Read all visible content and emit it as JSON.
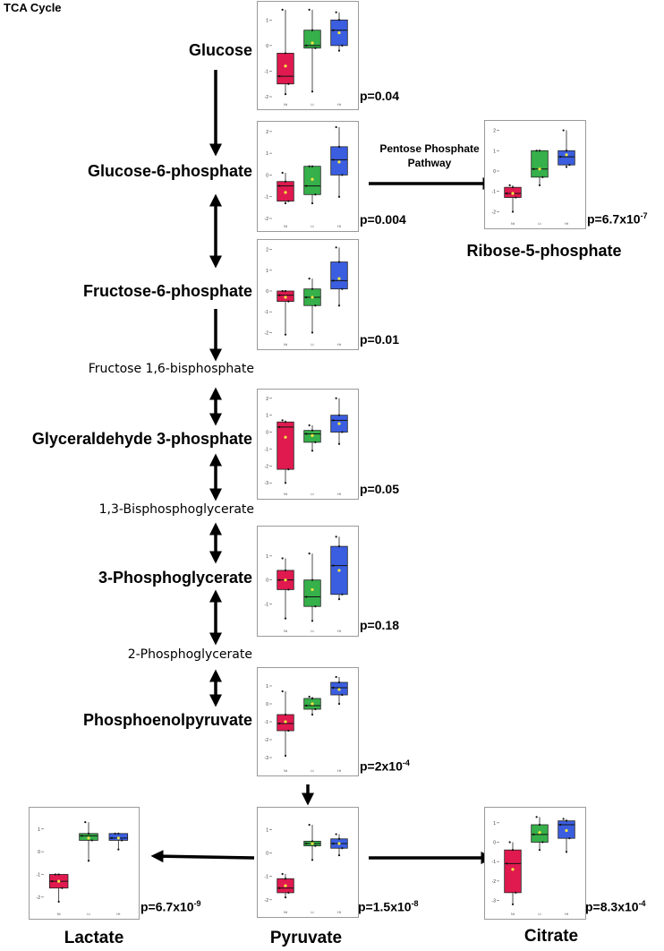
{
  "title": "TCA Cycle",
  "colors": {
    "group1": "#e0194f",
    "group2": "#36b04a",
    "group3": "#3b5ee0",
    "mean": "#f2e640"
  },
  "pathway_label_line1": "Pentose Phosphate",
  "pathway_label_line2": "Pathway",
  "metabolites": {
    "glucose": "Glucose",
    "g6p": "Glucose-6-phosphate",
    "f6p": "Fructose-6-phosphate",
    "f16bp": "Fructose 1,6-bisphosphate",
    "g3p": "Glyceraldehyde 3-phosphate",
    "bpg13": "1,3-Bisphosphoglycerate",
    "pg3": "3-Phosphoglycerate",
    "pg2": "2-Phosphoglycerate",
    "pep": "Phosphoenolpyruvate",
    "r5p": "Ribose-5-phosphate",
    "lactate": "Lactate",
    "pyruvate": "Pyruvate",
    "citrate": "Citrate"
  },
  "pvalues": {
    "glucose": "p=0.04",
    "g6p": "p=0.004",
    "f6p": "p=0.01",
    "g3p": "p=0.05",
    "pg3": "p=0.18",
    "pep": {
      "base": "p=2x10",
      "exp": "-4"
    },
    "r5p": {
      "base": "p=6.7x10",
      "exp": "-7"
    },
    "lactate": {
      "base": "p=6.7x10",
      "exp": "-9"
    },
    "pyruvate": {
      "base": "p=1.5x10",
      "exp": "-8"
    },
    "citrate": {
      "base": "p=8.3x10",
      "exp": "-4"
    }
  },
  "chart_data": [
    {
      "id": "glucose",
      "type": "box",
      "ylim": [
        -2,
        1.5
      ],
      "yticks": [
        -2,
        -1,
        0,
        1
      ],
      "xticks": [
        "Nt",
        "Lt",
        "Ht"
      ],
      "boxes": [
        {
          "q1": -1.5,
          "median": -1.2,
          "q3": -0.3,
          "lo": -1.9,
          "hi": 1.4,
          "mean": -0.8
        },
        {
          "q1": -0.1,
          "median": 0.0,
          "q3": 0.6,
          "lo": -1.8,
          "hi": 1.4,
          "mean": 0.1
        },
        {
          "q1": 0.0,
          "median": 0.6,
          "q3": 1.0,
          "lo": -0.2,
          "hi": 1.3,
          "mean": 0.5
        }
      ]
    },
    {
      "id": "g6p",
      "type": "box",
      "ylim": [
        -2,
        2.2
      ],
      "yticks": [
        -2,
        -1,
        0,
        1,
        2
      ],
      "xticks": [
        "Nt",
        "Lt",
        "Ht"
      ],
      "boxes": [
        {
          "q1": -1.2,
          "median": -0.5,
          "q3": -0.3,
          "lo": -1.3,
          "hi": 0.1,
          "mean": -0.8
        },
        {
          "q1": -0.9,
          "median": -0.5,
          "q3": 0.4,
          "lo": -1.3,
          "hi": 0.4,
          "mean": -0.2
        },
        {
          "q1": 0.0,
          "median": 0.7,
          "q3": 1.3,
          "lo": -1.0,
          "hi": 2.2,
          "mean": 0.6
        }
      ]
    },
    {
      "id": "f6p",
      "type": "box",
      "ylim": [
        -2.2,
        2.2
      ],
      "yticks": [
        -2,
        -1,
        0,
        1,
        2
      ],
      "xticks": [
        "Nt",
        "Lt",
        "Ht"
      ],
      "boxes": [
        {
          "q1": -0.5,
          "median": -0.2,
          "q3": 0.0,
          "lo": -2.1,
          "hi": 0.0,
          "mean": -0.3
        },
        {
          "q1": -0.7,
          "median": -0.3,
          "q3": 0.1,
          "lo": -2.0,
          "hi": 0.6,
          "mean": -0.3
        },
        {
          "q1": 0.1,
          "median": 0.5,
          "q3": 1.4,
          "lo": -0.7,
          "hi": 2.1,
          "mean": 0.6
        }
      ]
    },
    {
      "id": "g3p",
      "type": "box",
      "ylim": [
        -3.2,
        2.2
      ],
      "yticks": [
        -3,
        -2,
        -1,
        0,
        1,
        2
      ],
      "xticks": [
        "Nt",
        "Lt",
        "Ht"
      ],
      "boxes": [
        {
          "q1": -2.2,
          "median": 0.3,
          "q3": 0.6,
          "lo": -3.0,
          "hi": 0.7,
          "mean": -0.3
        },
        {
          "q1": -0.6,
          "median": -0.1,
          "q3": 0.1,
          "lo": -1.1,
          "hi": 0.4,
          "mean": -0.2
        },
        {
          "q1": 0.0,
          "median": 0.7,
          "q3": 1.0,
          "lo": -0.7,
          "hi": 2.0,
          "mean": 0.5
        }
      ]
    },
    {
      "id": "pg3",
      "type": "box",
      "ylim": [
        -1.8,
        2.0
      ],
      "yticks": [
        -1,
        0,
        1
      ],
      "xticks": [
        "Nt",
        "Lt",
        "Ht"
      ],
      "boxes": [
        {
          "q1": -0.4,
          "median": 0.0,
          "q3": 0.4,
          "lo": -1.6,
          "hi": 0.9,
          "mean": 0.0
        },
        {
          "q1": -1.1,
          "median": -0.7,
          "q3": 0.0,
          "lo": -1.7,
          "hi": 1.1,
          "mean": -0.4
        },
        {
          "q1": -0.6,
          "median": 0.6,
          "q3": 1.4,
          "lo": -0.8,
          "hi": 1.8,
          "mean": 0.4
        }
      ]
    },
    {
      "id": "pep",
      "type": "box",
      "ylim": [
        -3.3,
        1.7
      ],
      "yticks": [
        -3,
        -2,
        -1,
        0,
        1
      ],
      "xticks": [
        "Nt",
        "Lt",
        "Ht"
      ],
      "boxes": [
        {
          "q1": -1.5,
          "median": -1.1,
          "q3": -0.6,
          "lo": -2.9,
          "hi": 0.7,
          "mean": -1.0
        },
        {
          "q1": -0.3,
          "median": -0.1,
          "q3": 0.3,
          "lo": -0.6,
          "hi": 0.4,
          "mean": 0.0
        },
        {
          "q1": 0.5,
          "median": 0.9,
          "q3": 1.2,
          "lo": 0.0,
          "hi": 1.5,
          "mean": 0.8
        }
      ]
    },
    {
      "id": "r5p",
      "type": "box",
      "ylim": [
        -2.2,
        2.2
      ],
      "yticks": [
        -2,
        -1,
        0,
        1,
        2
      ],
      "xticks": [
        "Nt",
        "Lt",
        "Ht"
      ],
      "boxes": [
        {
          "q1": -1.3,
          "median": -1.1,
          "q3": -0.8,
          "lo": -2.0,
          "hi": -0.7,
          "mean": -1.1
        },
        {
          "q1": -0.3,
          "median": 0.1,
          "q3": 1.0,
          "lo": -0.7,
          "hi": 1.0,
          "mean": 0.1
        },
        {
          "q1": 0.3,
          "median": 0.7,
          "q3": 1.0,
          "lo": 0.2,
          "hi": 2.0,
          "mean": 0.8
        }
      ]
    },
    {
      "id": "lactate",
      "type": "box",
      "ylim": [
        -2.4,
        1.7
      ],
      "yticks": [
        -2,
        -1,
        0,
        1
      ],
      "xticks": [
        "Nt",
        "Lt",
        "Ht"
      ],
      "boxes": [
        {
          "q1": -1.6,
          "median": -1.3,
          "q3": -1.0,
          "lo": -2.2,
          "hi": -1.0,
          "mean": -1.3
        },
        {
          "q1": 0.5,
          "median": 0.7,
          "q3": 0.8,
          "lo": -0.4,
          "hi": 1.3,
          "mean": 0.6
        },
        {
          "q1": 0.5,
          "median": 0.6,
          "q3": 0.8,
          "lo": 0.1,
          "hi": 0.8,
          "mean": 0.6
        }
      ]
    },
    {
      "id": "pyruvate",
      "type": "box",
      "ylim": [
        -2.2,
        1.7
      ],
      "yticks": [
        -2,
        -1,
        0,
        1
      ],
      "xticks": [
        "Nt",
        "Lt",
        "Ht"
      ],
      "boxes": [
        {
          "q1": -1.7,
          "median": -1.5,
          "q3": -1.1,
          "lo": -1.9,
          "hi": -0.9,
          "mean": -1.4
        },
        {
          "q1": 0.3,
          "median": 0.4,
          "q3": 0.5,
          "lo": -0.3,
          "hi": 1.2,
          "mean": 0.4
        },
        {
          "q1": 0.2,
          "median": 0.4,
          "q3": 0.6,
          "lo": -0.1,
          "hi": 0.8,
          "mean": 0.4
        }
      ]
    },
    {
      "id": "citrate",
      "type": "box",
      "ylim": [
        -3.3,
        1.5
      ],
      "yticks": [
        -3,
        -2,
        -1,
        0,
        1
      ],
      "xticks": [
        "Nt",
        "Lt",
        "Ht"
      ],
      "boxes": [
        {
          "q1": -2.6,
          "median": -1.1,
          "q3": -0.4,
          "lo": -3.2,
          "hi": 0.0,
          "mean": -1.4
        },
        {
          "q1": 0.0,
          "median": 0.4,
          "q3": 0.9,
          "lo": -0.4,
          "hi": 1.3,
          "mean": 0.5
        },
        {
          "q1": 0.2,
          "median": 0.9,
          "q3": 1.1,
          "lo": -0.5,
          "hi": 1.2,
          "mean": 0.6
        }
      ]
    }
  ]
}
